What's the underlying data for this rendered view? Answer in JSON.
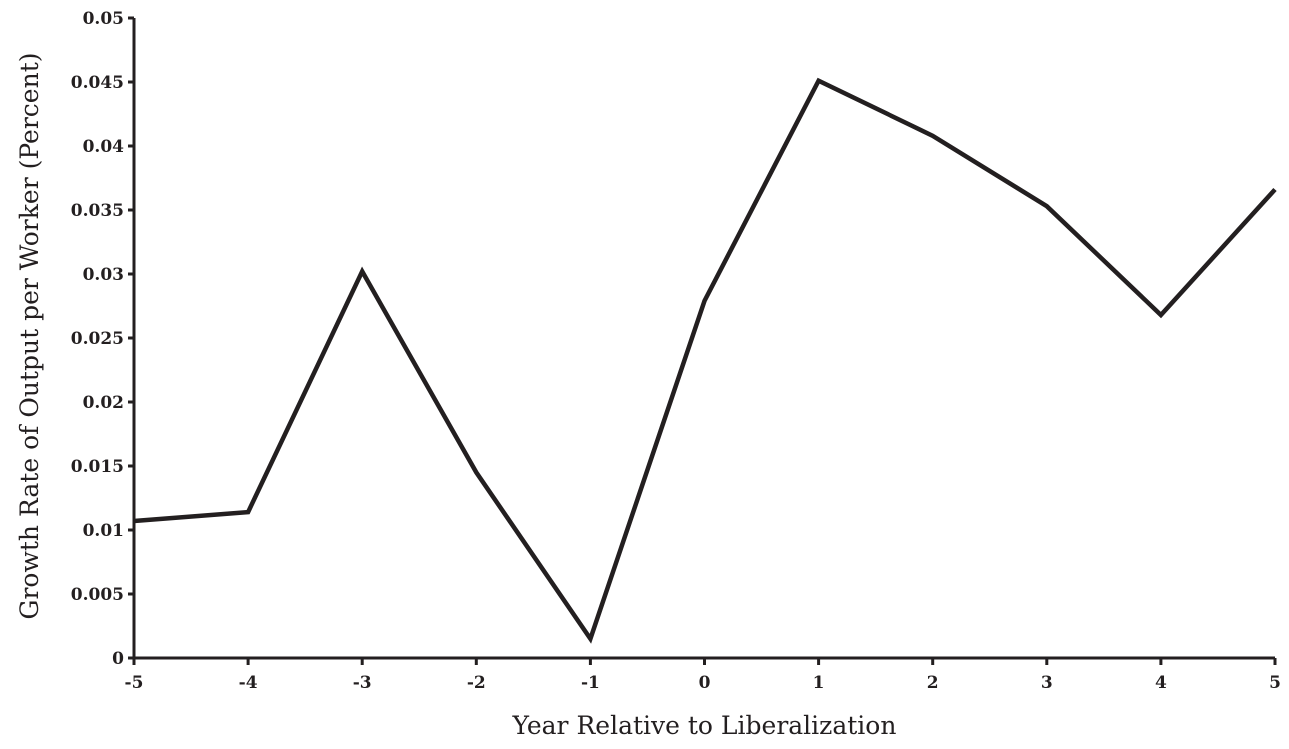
{
  "chart_data": {
    "type": "line",
    "title": "",
    "xlabel": "Year Relative to Liberalization",
    "ylabel": "Growth Rate of Output per Worker (Percent)",
    "x": [
      -5,
      -4,
      -3,
      -2,
      -1,
      0,
      1,
      2,
      3,
      4,
      5
    ],
    "xlim": [
      -5,
      5
    ],
    "ylim": [
      0,
      0.05
    ],
    "x_ticks": [
      -5,
      -4,
      -3,
      -2,
      -1,
      0,
      1,
      2,
      3,
      4,
      5
    ],
    "x_tick_labels": [
      "-5",
      "-4",
      "-3",
      "-2",
      "-1",
      "0",
      "1",
      "2",
      "3",
      "4",
      "5"
    ],
    "y_ticks": [
      0,
      0.005,
      0.01,
      0.015,
      0.02,
      0.025,
      0.03,
      0.035,
      0.04,
      0.045,
      0.05
    ],
    "y_tick_labels": [
      "0",
      "0.005",
      "0.01",
      "0.015",
      "0.02",
      "0.025",
      "0.03",
      "0.035",
      "0.04",
      "0.045",
      "0.05"
    ],
    "grid": false,
    "legend": "none",
    "series": [
      {
        "values": [
          0.0107,
          0.0114,
          0.0302,
          0.0145,
          0.0015,
          0.0279,
          0.0451,
          0.0408,
          0.0353,
          0.0268,
          0.0366
        ],
        "color": "#231f20"
      }
    ]
  }
}
